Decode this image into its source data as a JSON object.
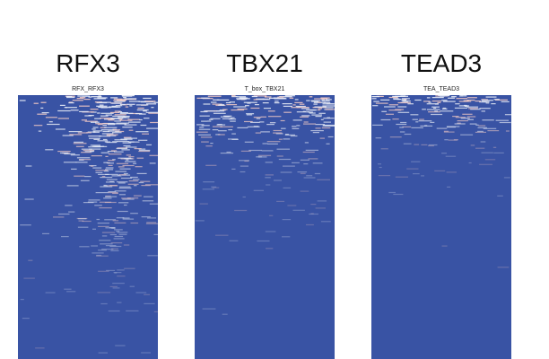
{
  "panels": [
    {
      "title": "RFX3",
      "subtitle": "RFX_RFX3"
    },
    {
      "title": "TBX21",
      "subtitle": "T_box_TBX21"
    },
    {
      "title": "TEAD3",
      "subtitle": "TEA_TEAD3"
    }
  ]
}
